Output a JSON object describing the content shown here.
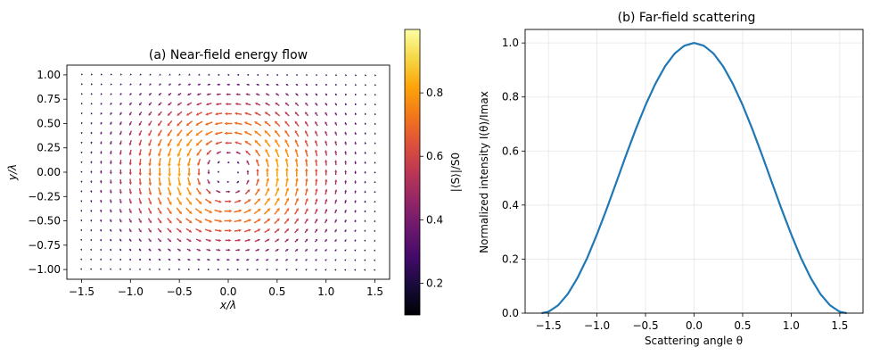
{
  "chart_data": [
    {
      "type": "quiver",
      "title": "(a) Near-field energy flow",
      "xlabel": "x/λ",
      "ylabel": "y/λ",
      "xlim": [
        -1.65,
        1.65
      ],
      "ylim": [
        -1.1,
        1.1
      ],
      "xticks": [
        "−1.5",
        "−1.0",
        "−0.5",
        "0.0",
        "0.5",
        "1.0",
        "1.5"
      ],
      "xtick_values": [
        -1.5,
        -1.0,
        -0.5,
        0.0,
        0.5,
        1.0,
        1.5
      ],
      "yticks": [
        "−1.00",
        "−0.75",
        "−0.50",
        "−0.25",
        "0.00",
        "0.25",
        "0.50",
        "0.75",
        "1.00"
      ],
      "ytick_values": [
        -1.0,
        -0.75,
        -0.5,
        -0.25,
        0.0,
        0.25,
        0.5,
        0.75,
        1.0
      ],
      "grid": {
        "nx": 31,
        "ny": 21,
        "xmin": -1.5,
        "xmax": 1.5,
        "ymin": -1.0,
        "ymax": 1.0
      },
      "field": "circulating vortex centered at origin; magnitude peaks at radius ≈ 0.6λ and vanishes at the center and corners",
      "colormap": "inferno",
      "colorbar": {
        "label": "|⟨S⟩|/S0",
        "range": [
          0.1,
          1.0
        ],
        "ticks": [
          "0.2",
          "0.4",
          "0.6",
          "0.8"
        ],
        "tick_values": [
          0.2,
          0.4,
          0.6,
          0.8
        ]
      }
    },
    {
      "type": "line",
      "title": "(b) Far-field scattering",
      "xlabel": "Scattering angle θ",
      "ylabel": "Normalized intensity I(θ)/Imax",
      "xlim": [
        -1.74,
        1.74
      ],
      "ylim": [
        0.0,
        1.05
      ],
      "xticks": [
        "−1.5",
        "−1.0",
        "−0.5",
        "0.0",
        "0.5",
        "1.0",
        "1.5"
      ],
      "xtick_values": [
        -1.5,
        -1.0,
        -0.5,
        0.0,
        0.5,
        1.0,
        1.5
      ],
      "yticks": [
        "0.0",
        "0.2",
        "0.4",
        "0.6",
        "0.8",
        "1.0"
      ],
      "ytick_values": [
        0.0,
        0.2,
        0.4,
        0.6,
        0.8,
        1.0
      ],
      "grid": true,
      "series": [
        {
          "name": "I(θ)/Imax",
          "color": "#1f77b4",
          "x": [
            -1.5708,
            -1.5,
            -1.4,
            -1.3,
            -1.2,
            -1.1,
            -1.0,
            -0.9,
            -0.8,
            -0.7,
            -0.6,
            -0.5,
            -0.4,
            -0.3,
            -0.2,
            -0.1,
            0.0,
            0.1,
            0.2,
            0.3,
            0.4,
            0.5,
            0.6,
            0.7,
            0.8,
            0.9,
            1.0,
            1.1,
            1.2,
            1.3,
            1.4,
            1.5,
            1.5708
          ],
          "y": [
            0.0,
            0.005,
            0.029,
            0.071,
            0.131,
            0.205,
            0.292,
            0.386,
            0.485,
            0.585,
            0.681,
            0.77,
            0.848,
            0.913,
            0.961,
            0.99,
            1.0,
            0.99,
            0.961,
            0.913,
            0.848,
            0.77,
            0.681,
            0.585,
            0.485,
            0.386,
            0.292,
            0.205,
            0.131,
            0.071,
            0.029,
            0.005,
            0.0
          ]
        }
      ]
    }
  ]
}
